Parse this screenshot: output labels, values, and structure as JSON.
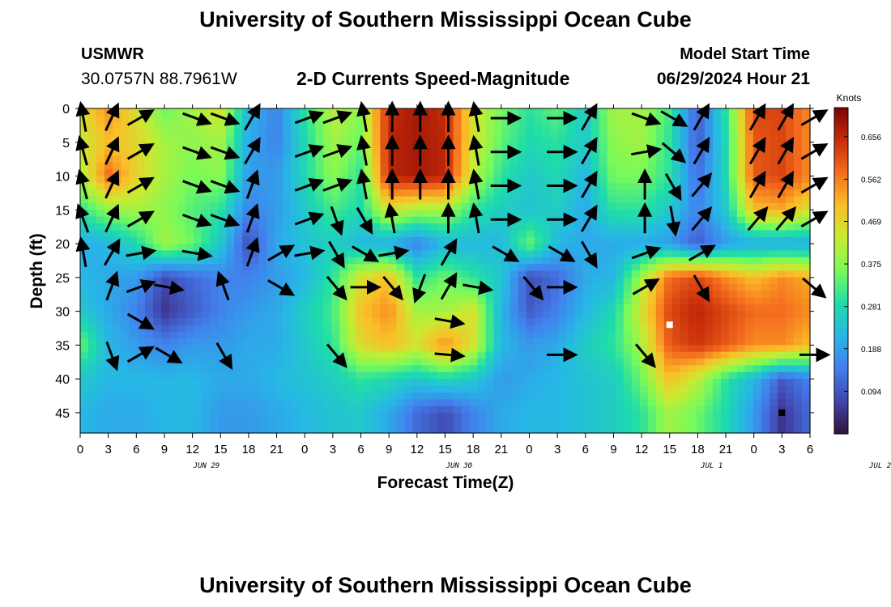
{
  "header": {
    "title": "University of Southern Mississippi Ocean Cube",
    "station": "USMWR",
    "coordinates": "30.0757N  88.7961W",
    "product": "2-D Currents Speed-Magnitude",
    "model_start_label": "Model Start Time",
    "model_start_value": "06/29/2024 Hour 21"
  },
  "footer": {
    "title": "University of Southern Mississippi Ocean Cube"
  },
  "colorbar": {
    "unit": "Knots",
    "ticks": [
      "0.656",
      "0.562",
      "0.469",
      "0.375",
      "0.281",
      "0.188",
      "0.094"
    ],
    "tick_values": [
      0.656,
      0.562,
      0.469,
      0.375,
      0.281,
      0.188,
      0.094
    ],
    "range": [
      0.0,
      0.72
    ]
  },
  "chart_data": {
    "type": "heatmap",
    "title": "2-D Currents Speed-Magnitude",
    "xlabel": "Forecast Time(Z)",
    "ylabel": "Depth (ft)",
    "x_tick_labels": [
      "0",
      "3",
      "6",
      "9",
      "12",
      "15",
      "18",
      "21",
      "0",
      "3",
      "6",
      "9",
      "12",
      "15",
      "18",
      "21",
      "0",
      "3",
      "6",
      "9",
      "12",
      "15",
      "18",
      "21",
      "0",
      "3",
      "6"
    ],
    "x_day_labels": [
      {
        "label": "JUN 29",
        "tick_index": 4.5
      },
      {
        "label": "JUN 30",
        "tick_index": 13.5
      },
      {
        "label": "JUL 1",
        "tick_index": 22.5
      },
      {
        "label": "JUL 2",
        "tick_index": 28.5
      }
    ],
    "y_tick_labels": [
      "0",
      "5",
      "10",
      "15",
      "20",
      "25",
      "30",
      "35",
      "40",
      "45"
    ],
    "ylim": [
      0,
      48
    ],
    "hours": [
      0,
      3,
      6,
      9,
      12,
      15,
      18,
      21,
      24,
      27,
      30,
      33,
      36,
      39,
      42,
      45,
      48,
      51,
      54,
      57,
      60,
      63,
      66,
      69,
      72,
      75,
      78
    ],
    "depths": [
      0,
      5,
      10,
      15,
      20,
      25,
      30,
      35,
      40,
      45
    ],
    "speed_knots": [
      [
        0.45,
        0.55,
        0.45,
        0.35,
        0.4,
        0.45,
        0.22,
        0.15,
        0.3,
        0.42,
        0.38,
        0.65,
        0.68,
        0.65,
        0.45,
        0.36,
        0.3,
        0.34,
        0.25,
        0.4,
        0.4,
        0.32,
        0.1,
        0.3,
        0.62,
        0.62,
        0.55
      ],
      [
        0.43,
        0.5,
        0.47,
        0.4,
        0.38,
        0.4,
        0.2,
        0.15,
        0.28,
        0.4,
        0.35,
        0.66,
        0.68,
        0.66,
        0.45,
        0.34,
        0.28,
        0.3,
        0.25,
        0.38,
        0.4,
        0.3,
        0.1,
        0.28,
        0.6,
        0.62,
        0.55
      ],
      [
        0.4,
        0.58,
        0.47,
        0.4,
        0.36,
        0.38,
        0.18,
        0.18,
        0.28,
        0.38,
        0.3,
        0.66,
        0.68,
        0.66,
        0.42,
        0.3,
        0.25,
        0.28,
        0.22,
        0.36,
        0.36,
        0.3,
        0.12,
        0.28,
        0.6,
        0.62,
        0.55
      ],
      [
        0.3,
        0.38,
        0.4,
        0.38,
        0.33,
        0.3,
        0.15,
        0.18,
        0.25,
        0.32,
        0.28,
        0.45,
        0.4,
        0.4,
        0.3,
        0.26,
        0.24,
        0.26,
        0.2,
        0.3,
        0.3,
        0.25,
        0.15,
        0.25,
        0.5,
        0.52,
        0.45
      ],
      [
        0.2,
        0.22,
        0.28,
        0.4,
        0.35,
        0.25,
        0.08,
        0.2,
        0.24,
        0.26,
        0.22,
        0.2,
        0.15,
        0.22,
        0.22,
        0.22,
        0.35,
        0.22,
        0.2,
        0.2,
        0.2,
        0.18,
        0.1,
        0.18,
        0.2,
        0.2,
        0.2
      ],
      [
        0.22,
        0.2,
        0.18,
        0.08,
        0.12,
        0.15,
        0.15,
        0.18,
        0.22,
        0.3,
        0.45,
        0.5,
        0.3,
        0.35,
        0.3,
        0.25,
        0.08,
        0.12,
        0.2,
        0.22,
        0.4,
        0.58,
        0.62,
        0.55,
        0.5,
        0.55,
        0.52
      ],
      [
        0.25,
        0.2,
        0.15,
        0.05,
        0.1,
        0.15,
        0.18,
        0.2,
        0.26,
        0.32,
        0.5,
        0.55,
        0.4,
        0.4,
        0.45,
        0.22,
        0.1,
        0.15,
        0.22,
        0.28,
        0.45,
        0.62,
        0.66,
        0.62,
        0.58,
        0.58,
        0.55
      ],
      [
        0.35,
        0.22,
        0.18,
        0.15,
        0.18,
        0.18,
        0.2,
        0.2,
        0.25,
        0.3,
        0.46,
        0.5,
        0.45,
        0.55,
        0.45,
        0.22,
        0.18,
        0.2,
        0.26,
        0.3,
        0.4,
        0.6,
        0.64,
        0.6,
        0.55,
        0.55,
        0.5
      ],
      [
        0.25,
        0.22,
        0.22,
        0.22,
        0.22,
        0.2,
        0.2,
        0.22,
        0.24,
        0.26,
        0.3,
        0.28,
        0.25,
        0.28,
        0.25,
        0.18,
        0.2,
        0.22,
        0.24,
        0.26,
        0.35,
        0.5,
        0.42,
        0.3,
        0.22,
        0.1,
        0.15
      ],
      [
        0.22,
        0.2,
        0.2,
        0.22,
        0.22,
        0.18,
        0.18,
        0.2,
        0.22,
        0.24,
        0.25,
        0.2,
        0.12,
        0.08,
        0.15,
        0.2,
        0.22,
        0.22,
        0.24,
        0.26,
        0.3,
        0.4,
        0.35,
        0.28,
        0.18,
        0.05,
        0.12
      ]
    ],
    "vectors_angle_deg_from_up": [
      [
        -10,
        25,
        60,
        null,
        110,
        110,
        30,
        null,
        70,
        70,
        -10,
        0,
        0,
        0,
        -10,
        90,
        null,
        90,
        30,
        null,
        110,
        120,
        30,
        null,
        30,
        30,
        60
      ],
      [
        -15,
        25,
        60,
        null,
        110,
        110,
        30,
        null,
        70,
        70,
        -10,
        0,
        0,
        0,
        -10,
        90,
        null,
        90,
        30,
        null,
        80,
        130,
        30,
        null,
        30,
        30,
        60
      ],
      [
        -15,
        25,
        60,
        null,
        110,
        110,
        20,
        null,
        70,
        70,
        -10,
        0,
        0,
        0,
        -10,
        90,
        null,
        90,
        30,
        null,
        0,
        150,
        40,
        null,
        30,
        30,
        60
      ],
      [
        -20,
        25,
        60,
        null,
        110,
        110,
        20,
        null,
        70,
        160,
        150,
        -10,
        null,
        0,
        -10,
        90,
        null,
        90,
        30,
        null,
        0,
        170,
        40,
        null,
        40,
        40,
        60
      ],
      [
        -10,
        30,
        80,
        null,
        100,
        null,
        20,
        60,
        80,
        150,
        120,
        80,
        null,
        30,
        null,
        120,
        null,
        120,
        150,
        null,
        70,
        null,
        60,
        null,
        null,
        null,
        null
      ],
      [
        null,
        20,
        70,
        100,
        null,
        -20,
        null,
        120,
        null,
        140,
        90,
        140,
        200,
        30,
        100,
        null,
        140,
        90,
        null,
        null,
        60,
        null,
        150,
        null,
        null,
        null,
        130
      ],
      [
        null,
        null,
        120,
        null,
        null,
        null,
        null,
        null,
        null,
        null,
        null,
        null,
        null,
        100,
        null,
        null,
        null,
        null,
        null,
        null,
        null,
        null,
        null,
        null,
        null,
        null,
        null
      ],
      [
        null,
        160,
        60,
        120,
        null,
        150,
        null,
        null,
        null,
        140,
        null,
        null,
        null,
        95,
        null,
        null,
        null,
        90,
        null,
        null,
        140,
        null,
        null,
        null,
        null,
        null,
        90
      ],
      [
        null,
        null,
        null,
        null,
        null,
        null,
        null,
        null,
        null,
        null,
        null,
        null,
        null,
        null,
        null,
        null,
        null,
        null,
        null,
        null,
        null,
        null,
        null,
        null,
        null,
        null,
        null
      ],
      [
        null,
        null,
        null,
        null,
        null,
        null,
        null,
        null,
        null,
        null,
        null,
        null,
        null,
        null,
        null,
        null,
        null,
        null,
        null,
        null,
        null,
        null,
        null,
        null,
        null,
        null,
        null
      ]
    ],
    "markers": [
      {
        "type": "white-square",
        "hour": 63,
        "depth": 32
      },
      {
        "type": "black-square",
        "hour": 75,
        "depth": 45
      }
    ]
  }
}
